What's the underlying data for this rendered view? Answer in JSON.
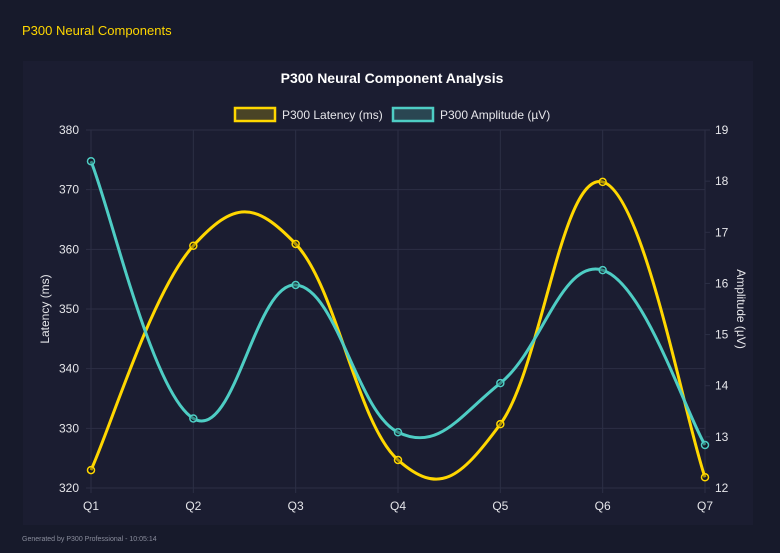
{
  "page": {
    "title": "P300 Neural Components",
    "footer": "Generated by P300 Professional - 10:05:14"
  },
  "chart_data": {
    "type": "line",
    "title": "P300 Neural Component Analysis",
    "categories": [
      "Q1",
      "Q2",
      "Q3",
      "Q4",
      "Q5",
      "Q6",
      "Q7"
    ],
    "series": [
      {
        "name": "P300 Latency (ms)",
        "axis": "left",
        "color": "#FFD700",
        "values": [
          323.0,
          360.6,
          360.9,
          324.7,
          330.7,
          371.3,
          321.8
        ]
      },
      {
        "name": "P300 Amplitude (µV)",
        "axis": "right",
        "color": "#4ECDC4",
        "values": [
          18.39,
          13.36,
          15.97,
          13.09,
          14.05,
          16.26,
          12.84
        ]
      }
    ],
    "y_left": {
      "label": "Latency (ms)",
      "range": [
        320,
        380
      ],
      "ticks": [
        "320",
        "330",
        "340",
        "350",
        "360",
        "370",
        "380"
      ]
    },
    "y_right": {
      "label": "Amplitude (µV)",
      "range": [
        12,
        19
      ],
      "ticks": [
        "12",
        "13",
        "14",
        "15",
        "16",
        "17",
        "18",
        "19"
      ]
    },
    "grid": true,
    "smooth": true,
    "legend": "top"
  }
}
